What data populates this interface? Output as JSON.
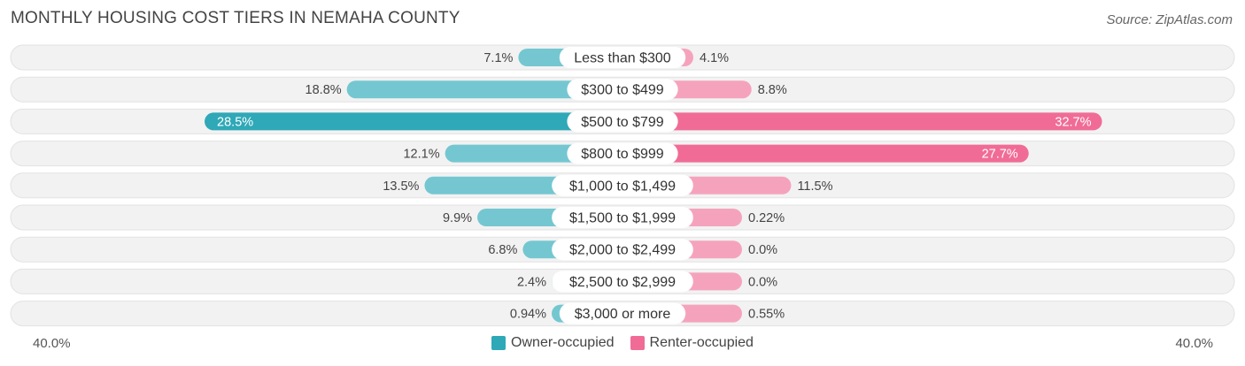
{
  "title": "MONTHLY HOUSING COST TIERS IN NEMAHA COUNTY",
  "source": "Source: ZipAtlas.com",
  "colors": {
    "owner": "#2fa8b7",
    "owner_light": "#74c7d1",
    "renter": "#f06c96",
    "renter_light": "#f5a3bd",
    "track": "#f1f1f1"
  },
  "chart_data": {
    "type": "bar",
    "orientation": "diverging-horizontal",
    "title": "MONTHLY HOUSING COST TIERS IN NEMAHA COUNTY",
    "categories": [
      "Less than $300",
      "$300 to $499",
      "$500 to $799",
      "$800 to $999",
      "$1,000 to $1,499",
      "$1,500 to $1,999",
      "$2,000 to $2,499",
      "$2,500 to $2,999",
      "$3,000 or more"
    ],
    "series": [
      {
        "name": "Owner-occupied",
        "values": [
          7.1,
          18.8,
          28.5,
          12.1,
          13.5,
          9.9,
          6.8,
          2.4,
          0.94
        ],
        "labels": [
          "7.1%",
          "18.8%",
          "28.5%",
          "12.1%",
          "13.5%",
          "9.9%",
          "6.8%",
          "2.4%",
          "0.94%"
        ]
      },
      {
        "name": "Renter-occupied",
        "values": [
          4.1,
          8.8,
          32.7,
          27.7,
          11.5,
          0.22,
          0.0,
          0.0,
          0.55
        ],
        "labels": [
          "4.1%",
          "8.8%",
          "32.7%",
          "27.7%",
          "11.5%",
          "0.22%",
          "0.0%",
          "0.0%",
          "0.55%"
        ]
      }
    ],
    "xlim": [
      -40,
      40
    ],
    "axis_min_label": "40.0%",
    "axis_max_label": "40.0%",
    "legend": "bottom-center"
  }
}
